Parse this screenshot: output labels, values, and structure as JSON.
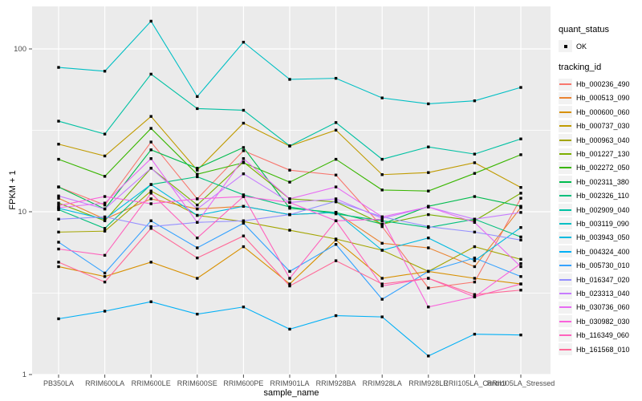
{
  "chart_data": {
    "type": "line",
    "scale": "log10",
    "title": "",
    "xlabel": "sample_name",
    "ylabel": "FPKM + 1",
    "ylim": [
      1,
      160
    ],
    "grid": true,
    "legend_position": "right",
    "yticks": [
      1,
      10,
      100
    ],
    "ytick_labels": [
      "1",
      "10",
      "100"
    ],
    "minor_gridlines_at": [
      3.1623,
      31.623
    ],
    "categories": [
      "PB350LA",
      "RRIM600LA",
      "RRIM600LE",
      "RRIM600SE",
      "RRIM600PE",
      "RRIM901LA",
      "RRIM928BA",
      "RRIM928LA",
      "RRIM928LE",
      "RRII105LA_Control",
      "RRII105LA_Stressed"
    ],
    "point_shape": "small-black-square",
    "series": [
      {
        "name": "Hb_000236_490",
        "color": "#F8766D",
        "values": [
          14.2,
          11.0,
          26.8,
          12.0,
          23.7,
          18.0,
          16.8,
          8.1,
          3.4,
          3.7,
          12.1
        ]
      },
      {
        "name": "Hb_000513_090",
        "color": "#EA8331",
        "values": [
          12.1,
          9.0,
          12.0,
          10.4,
          10.8,
          9.6,
          9.9,
          6.4,
          6.0,
          4.6,
          10.6
        ]
      },
      {
        "name": "Hb_000600_060",
        "color": "#D89000",
        "values": [
          4.6,
          4.0,
          4.9,
          3.9,
          6.1,
          3.6,
          6.7,
          3.9,
          4.3,
          3.9,
          3.6
        ]
      },
      {
        "name": "Hb_000737_030",
        "color": "#C09B00",
        "values": [
          26.0,
          22.0,
          38.5,
          18.0,
          35.0,
          25.3,
          31.7,
          16.9,
          17.4,
          20.0,
          14.1
        ]
      },
      {
        "name": "Hb_000963_040",
        "color": "#A3A500",
        "values": [
          7.5,
          7.6,
          13.4,
          9.5,
          8.7,
          7.7,
          6.8,
          5.8,
          4.3,
          6.1,
          5.1
        ]
      },
      {
        "name": "Hb_001227_130",
        "color": "#7CAE00",
        "values": [
          11.3,
          8.8,
          18.5,
          11.0,
          20.2,
          12.0,
          11.5,
          8.4,
          9.6,
          8.8,
          13.0
        ]
      },
      {
        "name": "Hb_002272_050",
        "color": "#39B600",
        "values": [
          21.0,
          16.5,
          32.5,
          17.0,
          20.0,
          15.2,
          21.0,
          13.6,
          13.4,
          17.2,
          22.4
        ]
      },
      {
        "name": "Hb_002311_380",
        "color": "#00BB4E",
        "values": [
          14.2,
          10.4,
          24.0,
          18.5,
          24.8,
          10.5,
          9.9,
          8.4,
          10.8,
          12.4,
          10.8
        ]
      },
      {
        "name": "Hb_002326_110",
        "color": "#00BF7D",
        "values": [
          10.3,
          7.9,
          14.7,
          16.4,
          12.7,
          10.7,
          9.7,
          8.8,
          8.0,
          9.0,
          7.0
        ]
      },
      {
        "name": "Hb_002909_040",
        "color": "#00C1A3",
        "values": [
          36.0,
          30.0,
          70.0,
          43.0,
          42.0,
          25.4,
          35.3,
          21.0,
          25.0,
          22.6,
          28.0
        ]
      },
      {
        "name": "Hb_003119_090",
        "color": "#00BFC4",
        "values": [
          77.0,
          73.0,
          148.0,
          51.0,
          110.0,
          65.0,
          66.0,
          50.0,
          46.0,
          48.0,
          58.0
        ]
      },
      {
        "name": "Hb_003943_050",
        "color": "#00BAE0",
        "values": [
          10.5,
          9.0,
          14.7,
          9.5,
          10.8,
          9.6,
          9.9,
          5.8,
          6.9,
          5.0,
          8.0
        ]
      },
      {
        "name": "Hb_004324_400",
        "color": "#00B0F6",
        "values": [
          2.2,
          2.45,
          2.8,
          2.35,
          2.6,
          1.9,
          2.3,
          2.26,
          1.3,
          1.77,
          1.75
        ]
      },
      {
        "name": "Hb_005730_010",
        "color": "#35A2FF",
        "values": [
          6.5,
          4.2,
          8.8,
          6.0,
          8.5,
          4.3,
          6.3,
          2.9,
          4.3,
          5.2,
          4.0
        ]
      },
      {
        "name": "Hb_016347_020",
        "color": "#9590FF",
        "values": [
          9.0,
          9.3,
          8.1,
          8.6,
          8.8,
          9.6,
          11.6,
          9.3,
          8.1,
          7.5,
          6.7
        ]
      },
      {
        "name": "Hb_023313_040",
        "color": "#C77CFF",
        "values": [
          12.5,
          10.4,
          18.5,
          10.4,
          17.1,
          11.4,
          12.0,
          9.1,
          10.7,
          9.0,
          9.9
        ]
      },
      {
        "name": "Hb_030736_060",
        "color": "#E76BF3",
        "values": [
          10.6,
          11.3,
          21.2,
          8.6,
          21.2,
          12.0,
          14.2,
          9.3,
          10.7,
          8.6,
          4.6
        ]
      },
      {
        "name": "Hb_030982_030",
        "color": "#FA62DB",
        "values": [
          10.9,
          12.4,
          11.2,
          12.0,
          12.4,
          11.4,
          8.8,
          9.0,
          2.6,
          3.0,
          4.8
        ]
      },
      {
        "name": "Hb_116349_060",
        "color": "#FF62BC",
        "values": [
          5.9,
          5.4,
          13.0,
          6.9,
          12.4,
          3.9,
          8.8,
          3.5,
          3.9,
          3.0,
          3.6
        ]
      },
      {
        "name": "Hb_161568_010",
        "color": "#FF6A98",
        "values": [
          4.9,
          3.7,
          7.9,
          5.2,
          7.1,
          3.5,
          5.0,
          3.6,
          3.9,
          3.1,
          3.3
        ]
      }
    ]
  },
  "legend": {
    "quant_title": "quant_status",
    "quant_items": [
      {
        "label": "OK",
        "key": "black-point"
      }
    ],
    "tracking_title": "tracking_id"
  },
  "axes": {
    "y_title": "FPKM + 1",
    "x_title": "sample_name"
  },
  "colors": {
    "panel_background": "#EBEBEB",
    "gridline": "#FFFFFF",
    "axis_text": "#4D4D4D",
    "point": "#000000",
    "legend_key_background": "#F2F2F2"
  }
}
